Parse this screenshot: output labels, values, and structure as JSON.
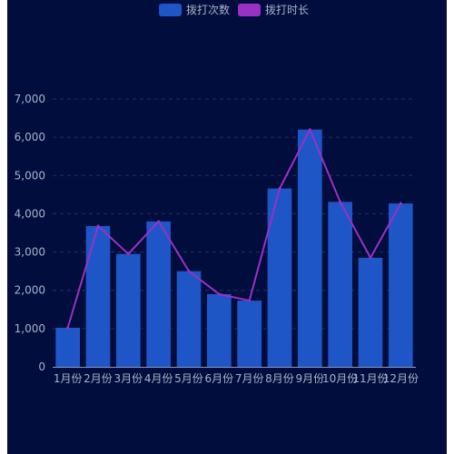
{
  "colors": {
    "background": "#010d3c",
    "bar": "#1e56c8",
    "line": "#9b30c4",
    "axis_text": "#aab2c8",
    "grid": "#22305e",
    "axis_line": "#8c95b0"
  },
  "chart_data": {
    "type": "bar",
    "categories": [
      "1月份",
      "2月份",
      "3月份",
      "4月份",
      "5月份",
      "6月份",
      "7月份",
      "8月份",
      "9月份",
      "10月份",
      "11月份",
      "12月份"
    ],
    "series": [
      {
        "name": "拨打次数",
        "type": "bar",
        "values": [
          1020,
          3680,
          2950,
          3800,
          2500,
          1900,
          1730,
          4660,
          6200,
          4310,
          2850,
          4270
        ]
      },
      {
        "name": "拨打时长",
        "type": "line",
        "values": [
          1020,
          3680,
          2950,
          3800,
          2500,
          1900,
          1730,
          4660,
          6200,
          4310,
          2850,
          4270
        ]
      }
    ],
    "ylim": [
      0,
      7000
    ],
    "yticks": [
      0,
      1000,
      2000,
      3000,
      4000,
      5000,
      6000,
      7000
    ],
    "ytick_labels": [
      "0",
      "1,000",
      "2,000",
      "3,000",
      "4,000",
      "5,000",
      "6,000",
      "7,000"
    ],
    "grid": true,
    "legend": "top-center"
  }
}
